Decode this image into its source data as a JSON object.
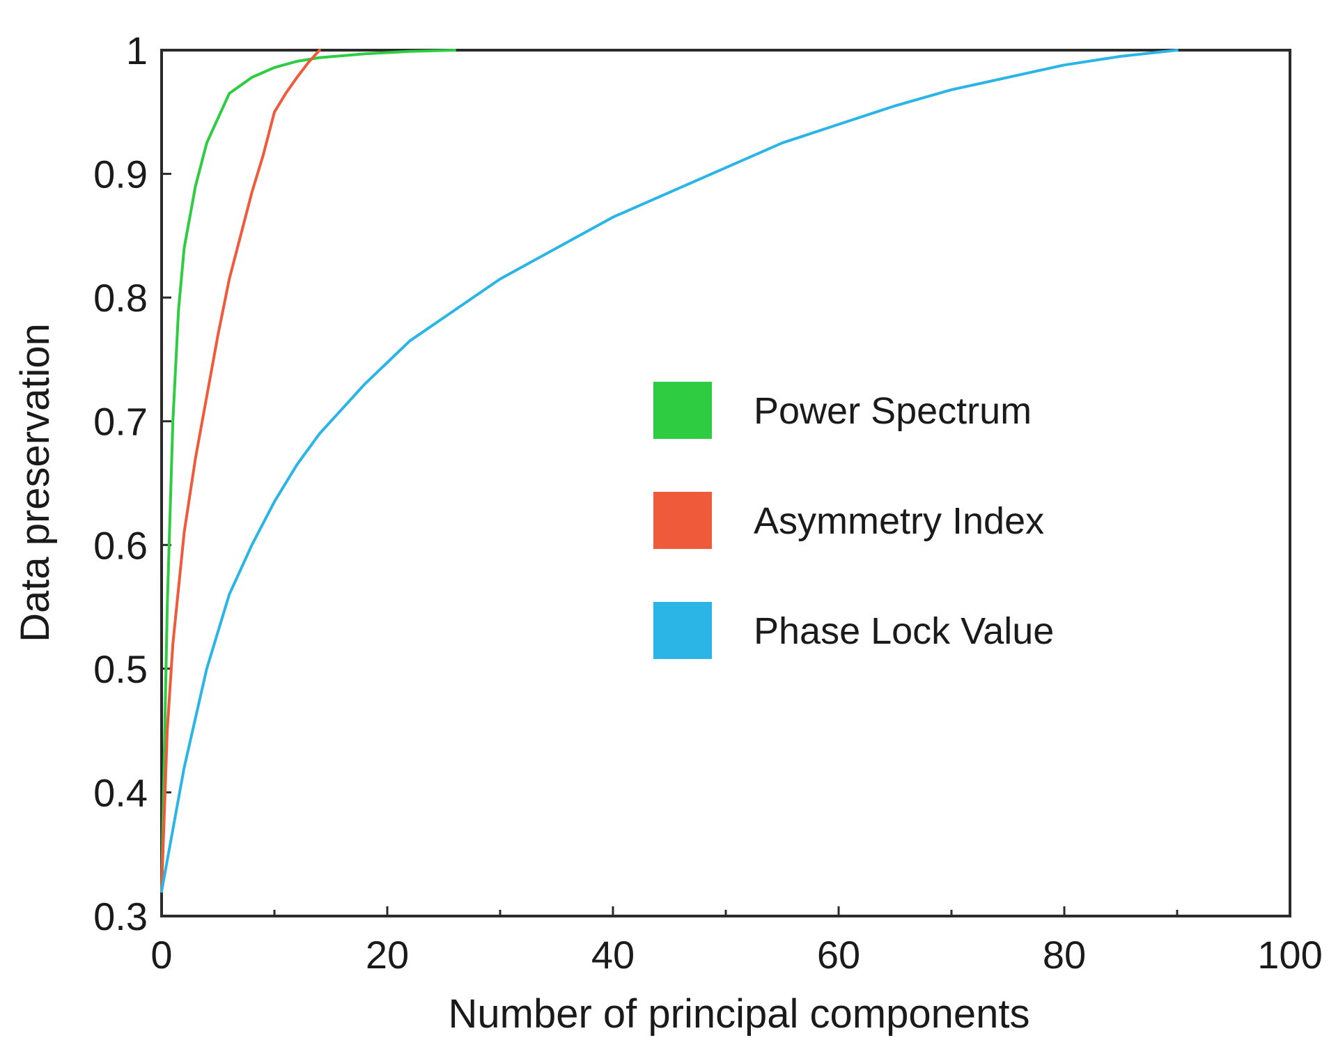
{
  "chart_data": {
    "type": "line",
    "title": "",
    "xlabel": "Number of principal components",
    "ylabel": "Data preservation",
    "xlim": [
      0,
      100
    ],
    "ylim": [
      0.3,
      1.0
    ],
    "x_ticks": [
      0,
      20,
      40,
      60,
      80,
      100
    ],
    "x_tick_labels": [
      "0",
      "20",
      "40",
      "60",
      "80",
      "100"
    ],
    "x_minor_ticks": [
      10,
      30,
      50,
      70,
      90
    ],
    "y_ticks": [
      0.3,
      0.4,
      0.5,
      0.6,
      0.7,
      0.8,
      0.9,
      1.0
    ],
    "y_tick_labels": [
      "0.3",
      "0.4",
      "0.5",
      "0.6",
      "0.7",
      "0.8",
      "0.9",
      "1"
    ],
    "grid": false,
    "legend_position": "center-right",
    "series": [
      {
        "name": "Power Spectrum",
        "color": "#2ecc40",
        "x": [
          0,
          0.5,
          1,
          1.5,
          2,
          3,
          4,
          6,
          8,
          10,
          12,
          14,
          18,
          22,
          26
        ],
        "y": [
          0.32,
          0.55,
          0.7,
          0.79,
          0.84,
          0.89,
          0.925,
          0.965,
          0.978,
          0.986,
          0.991,
          0.994,
          0.997,
          0.999,
          1.0
        ]
      },
      {
        "name": "Asymmetry Index",
        "color": "#ee5a3a",
        "x": [
          0,
          0.5,
          1,
          2,
          3,
          4,
          5,
          6,
          7,
          8,
          9,
          10,
          11,
          12,
          13,
          14
        ],
        "y": [
          0.32,
          0.45,
          0.52,
          0.61,
          0.67,
          0.72,
          0.77,
          0.815,
          0.85,
          0.885,
          0.915,
          0.95,
          0.965,
          0.978,
          0.99,
          1.0
        ]
      },
      {
        "name": "Phase Lock Value",
        "color": "#2ab5e6",
        "x": [
          0,
          1,
          2,
          4,
          6,
          8,
          10,
          12,
          14,
          18,
          22,
          26,
          30,
          35,
          40,
          45,
          50,
          55,
          60,
          65,
          70,
          75,
          80,
          85,
          90
        ],
        "y": [
          0.32,
          0.37,
          0.42,
          0.5,
          0.56,
          0.6,
          0.635,
          0.665,
          0.69,
          0.73,
          0.765,
          0.79,
          0.815,
          0.84,
          0.865,
          0.885,
          0.905,
          0.925,
          0.94,
          0.955,
          0.968,
          0.978,
          0.988,
          0.995,
          1.0
        ]
      }
    ]
  }
}
